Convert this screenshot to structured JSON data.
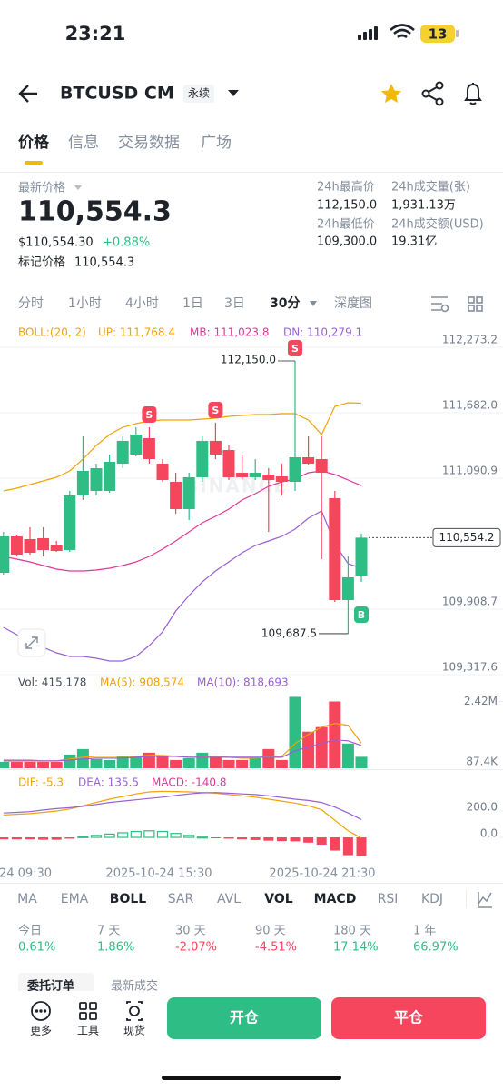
{
  "status": {
    "time": "23:21",
    "battery": "13"
  },
  "header": {
    "symbol": "BTCUSD CM",
    "tag": "永续"
  },
  "tabs": [
    "价格",
    "信息",
    "交易数据",
    "广场"
  ],
  "price": {
    "label": "最新价格",
    "last": "110,554.3",
    "usd": "$110,554.30",
    "change": "+0.88%",
    "mark_label": "标记价格",
    "mark": "110,554.3"
  },
  "stats": [
    {
      "label": "24h最高价",
      "value": "112,150.0"
    },
    {
      "label": "24h成交量(张)",
      "value": "1,931.13万"
    },
    {
      "label": "24h最低价",
      "value": "109,300.0"
    },
    {
      "label": "24h成交额(USD)",
      "value": "19.31亿"
    }
  ],
  "intervals": [
    "分时",
    "1小时",
    "4小时",
    "1日",
    "3日",
    "30分",
    "深度图"
  ],
  "chart_data": [
    {
      "type": "candlestick",
      "indicator": "BOLL:(20, 2)",
      "watermark": "BINANCE",
      "up_color": "#2ebd85",
      "down_color": "#f6465d",
      "grid": true,
      "ylim": [
        109317.6,
        112273.2
      ],
      "yticks": [
        {
          "value": 112273.2,
          "label": "112,273.2"
        },
        {
          "value": 111682.0,
          "label": "111,682.0"
        },
        {
          "value": 111090.9,
          "label": "111,090.9"
        },
        {
          "value": 109908.7,
          "label": "109,908.7"
        },
        {
          "value": 109317.6,
          "label": "109,317.6"
        }
      ],
      "last_price": {
        "value": 110554.2,
        "label": "110,554.2"
      },
      "high_label": "112,150.0",
      "low_label": "109,687.5",
      "open": [
        110237.1,
        110565.5,
        110540.9,
        110549.1,
        110483.4,
        110442.4,
        110935.0,
        110976.0,
        110976.0,
        111222.3,
        111304.4,
        111452.2,
        111222.3,
        111058.1,
        110811.8,
        111099.2,
        111427.9,
        111345.4,
        111140.2,
        111099.2,
        111123.8,
        111107.4,
        111058.1,
        111279.8,
        111263.4,
        110910.3,
        109990.8,
        110212.4
      ],
      "high": [
        110606.6,
        110581.9,
        110647.6,
        110647.6,
        110524.5,
        110976.0,
        111468.6,
        111222.3,
        111304.4,
        111468.6,
        111550.7,
        111550.7,
        111263.4,
        111140.2,
        111140.2,
        111468.6,
        111591.8,
        111386.5,
        111304.4,
        111263.4,
        111181.3,
        111222.3,
        112150.0,
        111468.6,
        111468.6,
        110976.0,
        110384.8,
        110590.1
      ],
      "low": [
        110220.6,
        110384.8,
        110401.3,
        110384.8,
        110425.9,
        110425.9,
        110893.9,
        110935.0,
        110959.6,
        111181.3,
        111288.0,
        111222.3,
        111058.1,
        110770.8,
        110713.3,
        111058.1,
        111263.4,
        111074.6,
        111074.6,
        111074.6,
        110606.6,
        110935.0,
        110976.0,
        111205.9,
        110360.2,
        109974.4,
        109687.5,
        110154.9
      ],
      "close": [
        110565.5,
        110401.3,
        110417.7,
        110442.4,
        110434.1,
        110935.0,
        111156.7,
        111181.3,
        111238.7,
        111427.9,
        111485.0,
        111263.4,
        111074.6,
        110811.8,
        111099.2,
        111427.9,
        111304.4,
        111099.2,
        111099.2,
        111140.2,
        111074.6,
        111058.1,
        111279.8,
        111222.3,
        111140.2,
        109990.8,
        110196.0,
        110554.2
      ],
      "signals": [
        {
          "index": 11,
          "label": "S",
          "color": "#f6465d"
        },
        {
          "index": 16,
          "label": "S",
          "color": "#f6465d"
        },
        {
          "index": 22,
          "label": "S",
          "color": "#f6465d"
        },
        {
          "index": 27,
          "label": "B",
          "color": "#2ebd85"
        }
      ],
      "series": [
        {
          "name": "UP: 111,768.4",
          "color": "#f0a30a",
          "values": [
            110976.0,
            111000.7,
            111033.5,
            111066.3,
            111099.2,
            111156.7,
            111263.4,
            111386.5,
            111485.0,
            111550.7,
            111583.5,
            111608.2,
            111616.4,
            111616.4,
            111616.4,
            111624.6,
            111632.8,
            111649.2,
            111657.4,
            111665.6,
            111665.6,
            111673.9,
            111673.9,
            111616.4,
            111485.0,
            111739.5,
            111772.4,
            111768.4
          ]
        },
        {
          "name": "MB: 111,023.8",
          "color": "#e0379a",
          "values": [
            110384.8,
            110360.2,
            110335.6,
            110302.8,
            110269.9,
            110253.5,
            110253.5,
            110261.7,
            110278.1,
            110302.8,
            110335.6,
            110384.8,
            110450.6,
            110524.5,
            110606.6,
            110688.7,
            110746.2,
            110811.8,
            110893.9,
            110951.4,
            111017.0,
            111058.1,
            111082.7,
            111140.2,
            111156.7,
            111123.8,
            111074.6,
            111023.8
          ]
        },
        {
          "name": "DN: 110,279.1",
          "color": "#9a5fd6",
          "values": [
            109744.5,
            109678.8,
            109621.4,
            109563.9,
            109514.7,
            109481.8,
            109481.8,
            109465.4,
            109440.8,
            109440.8,
            109481.8,
            109580.3,
            109703.4,
            109892.3,
            110031.8,
            110154.9,
            110253.5,
            110335.6,
            110417.7,
            110483.4,
            110524.5,
            110565.5,
            110631.2,
            110729.7,
            110795.4,
            110499.8,
            110319.2,
            110279.1
          ]
        }
      ]
    },
    {
      "type": "bar",
      "volume_label": "Vol: 415,178",
      "ylim": [
        0,
        2700000
      ],
      "yticks": [
        {
          "value": 2420000,
          "label": "2.42M"
        },
        {
          "value": 87400,
          "label": "87.4K"
        }
      ],
      "values": [
        232000,
        232000,
        232000,
        232000,
        232000,
        497000,
        696000,
        332000,
        298000,
        431000,
        431000,
        564000,
        431000,
        298000,
        365000,
        564000,
        431000,
        298000,
        298000,
        365000,
        696000,
        298000,
        2586000,
        1326000,
        1492000,
        2420000,
        895000,
        415178
      ],
      "series": [
        {
          "name": "MA(5): 908,574",
          "color": "#f0a30a",
          "values": [
            298400,
            298400,
            298400,
            265200,
            265200,
            331500,
            397800,
            431000,
            431000,
            431000,
            431000,
            464100,
            464100,
            431000,
            397800,
            397800,
            431000,
            397800,
            364700,
            364700,
            431000,
            431000,
            895100,
            1226600,
            1491800,
            1624400,
            1558100,
            908574
          ]
        },
        {
          "name": "MA(10): 818,693",
          "color": "#9a5fd6",
          "values": [
            265200,
            265200,
            265200,
            265200,
            265200,
            298400,
            331500,
            364700,
            364700,
            364700,
            397800,
            431000,
            431000,
            431000,
            397800,
            397800,
            397800,
            397800,
            397800,
            397800,
            397800,
            397800,
            629900,
            762500,
            895100,
            1027700,
            994500,
            818693
          ]
        }
      ]
    },
    {
      "type": "macd",
      "ylim": [
        -186,
        476
      ],
      "yticks": [
        {
          "value": 200,
          "label": "200.0"
        },
        {
          "value": 0,
          "label": "0.0"
        }
      ],
      "histogram": {
        "name": "MACD: -140.8",
        "color": "#e0379a",
        "values": [
          -15,
          -15,
          -15,
          -18,
          -18,
          -10,
          5,
          15,
          25,
          35,
          45,
          50,
          45,
          30,
          15,
          2,
          -5,
          -10,
          -15,
          -20,
          -25,
          -28,
          -30,
          -40,
          -55,
          -100,
          -135,
          -140.8
        ]
      },
      "series": [
        {
          "name": "DIF: -5.3",
          "color": "#f0a30a",
          "values": [
            170,
            175,
            180,
            190,
            200,
            215,
            240,
            265,
            290,
            310,
            330,
            345,
            350,
            348,
            345,
            340,
            335,
            325,
            315,
            305,
            290,
            275,
            260,
            240,
            210,
            130,
            50,
            -5.3
          ]
        },
        {
          "name": "DEA: 135.5",
          "color": "#9a5fd6",
          "values": [
            185,
            190,
            195,
            208,
            218,
            225,
            235,
            250,
            265,
            275,
            285,
            295,
            305,
            318,
            330,
            338,
            340,
            335,
            330,
            325,
            315,
            303,
            290,
            280,
            265,
            230,
            185,
            135.5
          ]
        }
      ]
    }
  ],
  "time_labels": [
    "24 09:30",
    "2025-10-24 15:30",
    "2025-10-24 21:30"
  ],
  "indicators": [
    "MA",
    "EMA",
    "BOLL",
    "SAR",
    "AVL",
    "VOL",
    "MACD",
    "RSI",
    "KDJ"
  ],
  "returns": [
    {
      "label": "今日",
      "value": "0.61%",
      "color": "#2ebd85"
    },
    {
      "label": "7 天",
      "value": "1.86%",
      "color": "#2ebd85"
    },
    {
      "label": "30 天",
      "value": "-2.07%",
      "color": "#f6465d"
    },
    {
      "label": "90 天",
      "value": "-4.51%",
      "color": "#f6465d"
    },
    {
      "label": "180 天",
      "value": "17.14%",
      "color": "#2ebd85"
    },
    {
      "label": "1 年",
      "value": "66.97%",
      "color": "#2ebd85"
    }
  ],
  "order_tabs": [
    "委托订单",
    "最新成交"
  ],
  "toolbar": [
    "更多",
    "工具",
    "现货"
  ],
  "actions": {
    "open": "开仓",
    "close": "平仓"
  }
}
